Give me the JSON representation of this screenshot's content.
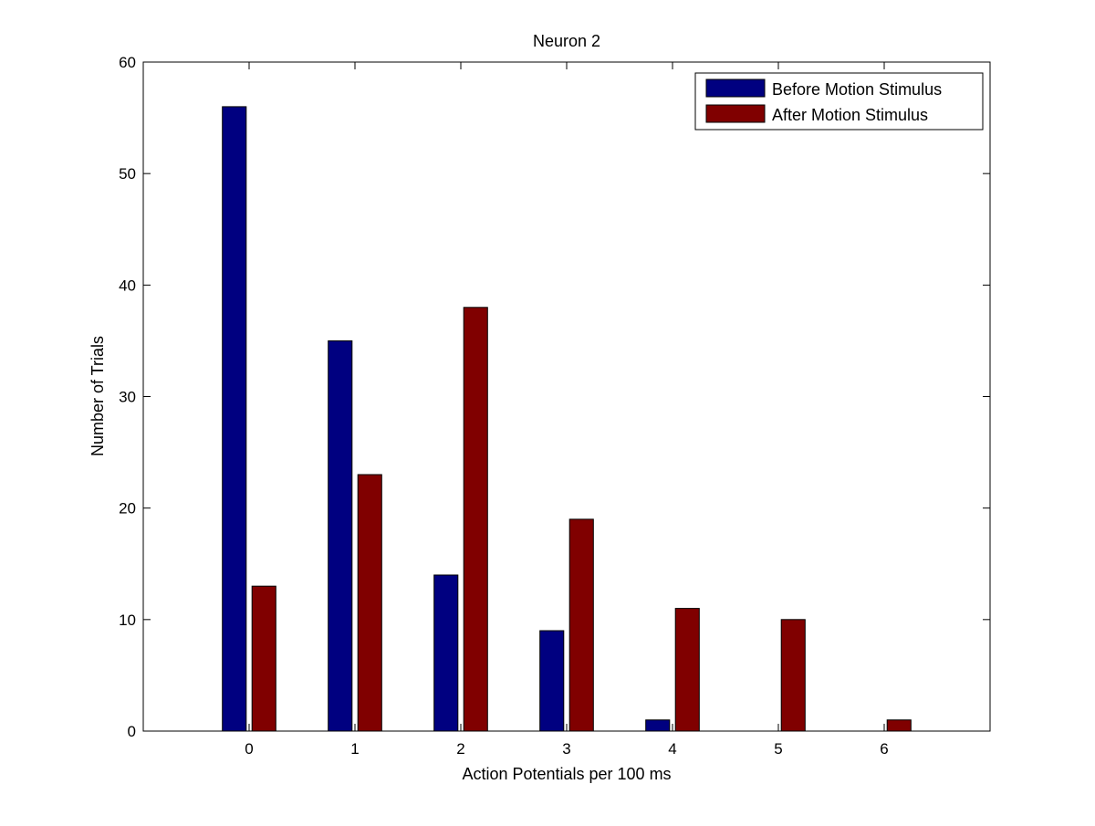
{
  "chart_data": {
    "type": "bar",
    "title": "Neuron 2",
    "xlabel": "Action Potentials per 100 ms",
    "ylabel": "Number of Trials",
    "categories": [
      "0",
      "1",
      "2",
      "3",
      "4",
      "5",
      "6"
    ],
    "x": [
      0,
      1,
      2,
      3,
      4,
      5,
      6
    ],
    "xlim": [
      -1,
      7
    ],
    "ylim": [
      0,
      60
    ],
    "yticks": [
      0,
      10,
      20,
      30,
      40,
      50,
      60
    ],
    "grid": false,
    "legend_position": "top-right",
    "series": [
      {
        "name": "Before Motion Stimulus",
        "color": "#000080",
        "values": [
          56,
          35,
          14,
          9,
          1,
          0,
          0
        ]
      },
      {
        "name": "After Motion Stimulus",
        "color": "#800000",
        "values": [
          13,
          23,
          38,
          19,
          11,
          10,
          1
        ]
      }
    ]
  }
}
